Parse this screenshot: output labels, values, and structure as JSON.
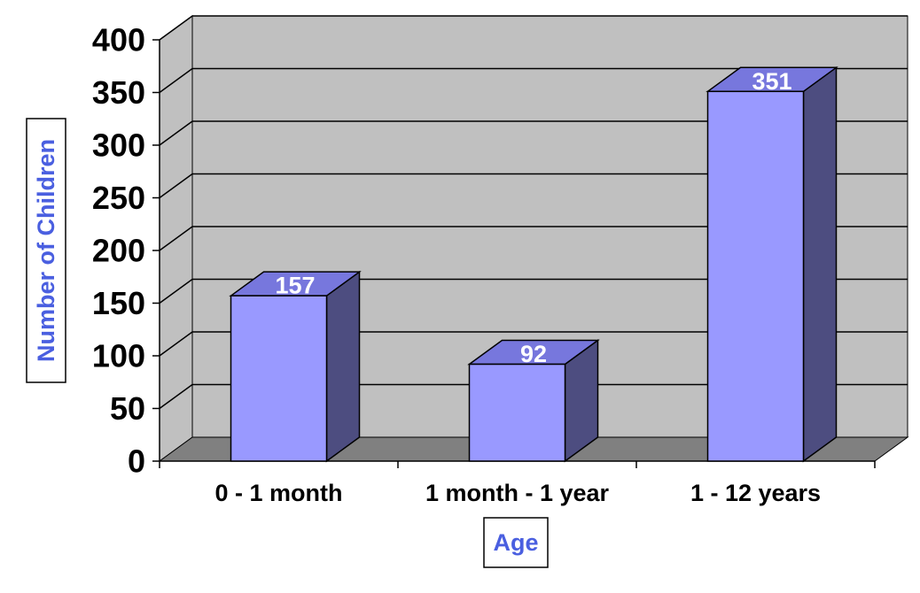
{
  "chart_data": {
    "type": "bar",
    "categories": [
      "0 - 1 month",
      "1 month - 1 year",
      "1 - 12 years"
    ],
    "values": [
      157,
      92,
      351
    ],
    "data_labels": [
      "157",
      "92",
      "351"
    ],
    "xlabel": "Age",
    "ylabel": "Number of Children",
    "ylim": [
      0,
      400
    ],
    "yticks": [
      0,
      50,
      100,
      150,
      200,
      250,
      300,
      350,
      400
    ],
    "grid": true,
    "legend": "none",
    "three_d": true
  },
  "colors": {
    "bar_front": "#9999ff",
    "bar_top": "#7777dd",
    "bar_side": "#4d4d80",
    "wall": "#c0c0c0",
    "floor": "#808080",
    "axis_title_text": "#4a5fe0",
    "data_label_text": "#ffffff"
  }
}
